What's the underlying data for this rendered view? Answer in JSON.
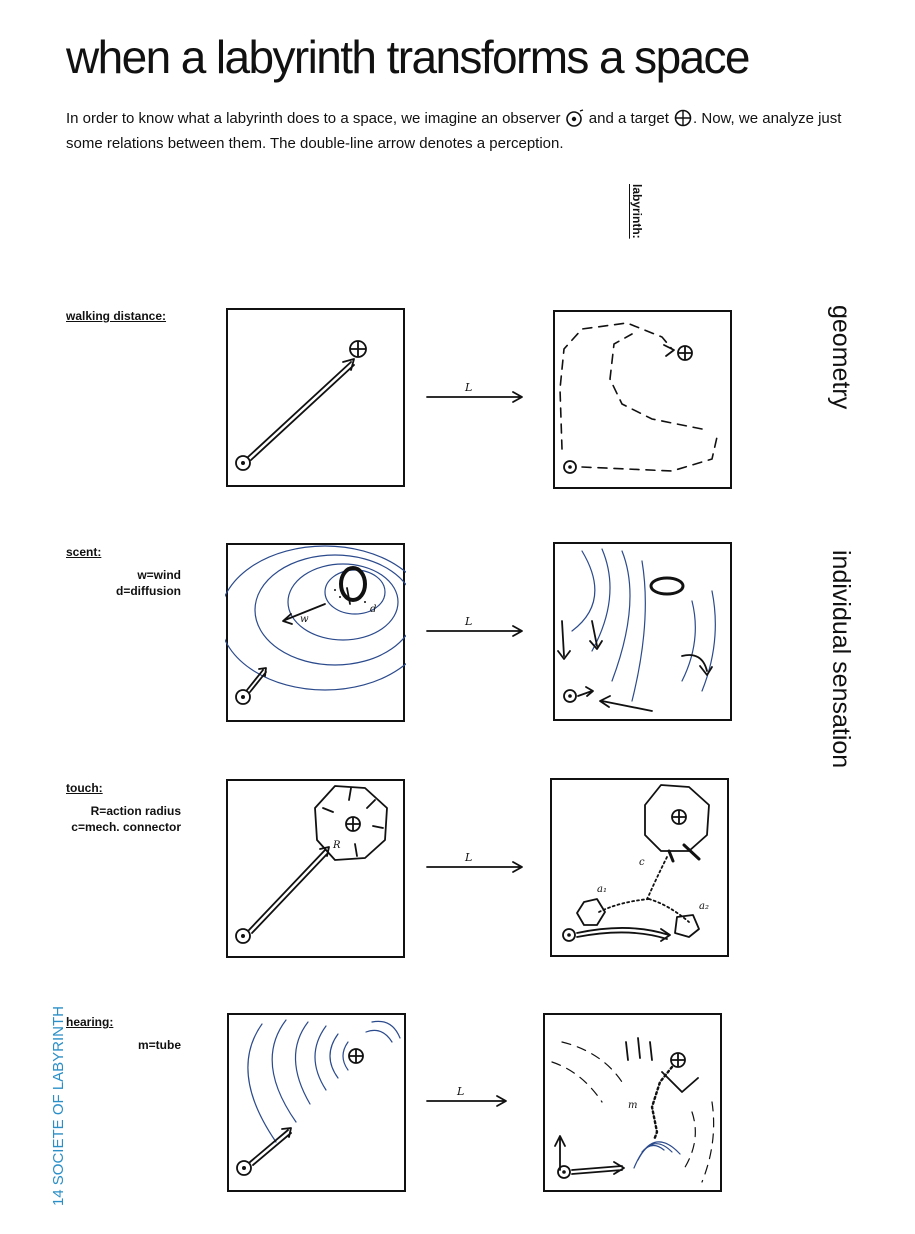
{
  "page": {
    "title": "when a labyrinth transforms a space",
    "intro_part1": "In order to know what a labyrinth does to a space, we imagine an observer",
    "intro_part2": "and a target",
    "intro_part3": ". Now, we analyze just some relations between them. The double-line arrow denotes a perception.",
    "labyrinth_heading": "labyrinth:",
    "side_label": "14 SOCIETE OF LABYRINTH"
  },
  "categories": {
    "geometry": "geometry",
    "individual_sensation": "individual sensation"
  },
  "rows": [
    {
      "label": "walking distance:",
      "legend": []
    },
    {
      "label": "scent:",
      "legend": [
        "w=wind",
        "d=diffusion"
      ]
    },
    {
      "label": "touch:",
      "legend": [
        "R=action radius",
        "c=mech. connector"
      ]
    },
    {
      "label": "hearing:",
      "legend": [
        "m=tube"
      ]
    }
  ],
  "sketch_labels": {
    "transform": "L",
    "wind": "w",
    "diffusion": "d",
    "radius": "R",
    "connector": "c",
    "a1": "a₁",
    "a2": "a₂",
    "tube": "m"
  },
  "icons": {
    "observer": "observer-icon",
    "target": "target-icon",
    "perception_arrow": "double-line-arrow-icon",
    "transform_arrow": "labyrinth-transform-arrow-icon"
  },
  "colors": {
    "ink": "#111111",
    "sketch_blue": "#2b4a8c",
    "side_label": "#2a8fc7"
  }
}
